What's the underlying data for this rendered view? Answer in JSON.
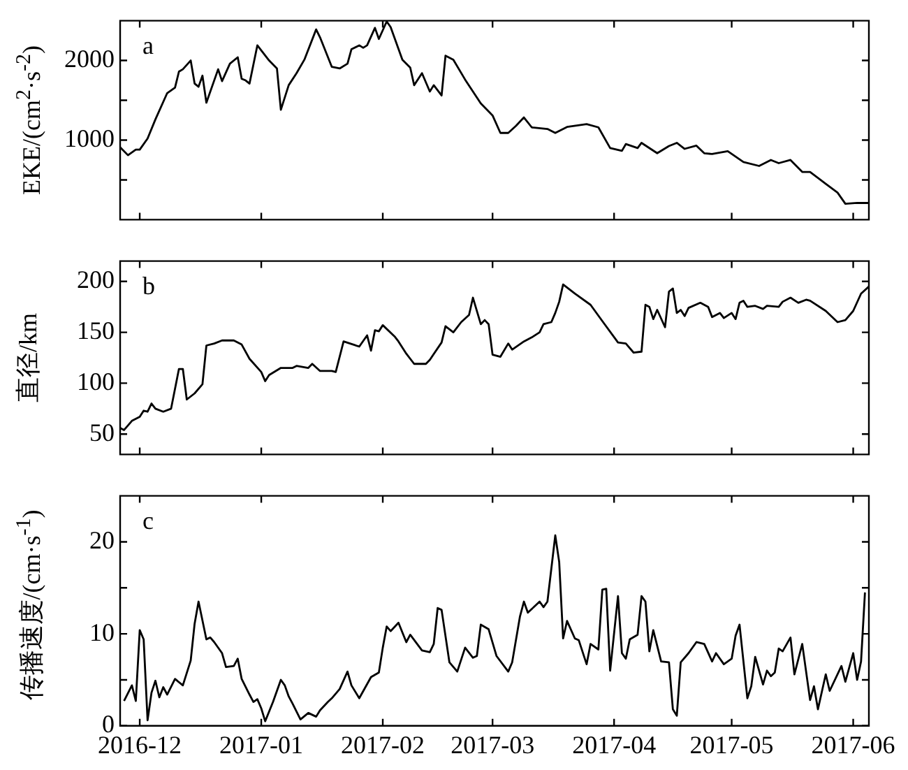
{
  "chart_data": [
    {
      "type": "line",
      "annotations": [
        "a"
      ],
      "ylabel": "EKE/(cm$^{2}$·s$^{-2}$)",
      "xlim": [
        "2016-11-26",
        "2017-06-05"
      ],
      "xticks": [
        "2016-12",
        "2017-01",
        "2017-02",
        "2017-03",
        "2017-04",
        "2017-05",
        "2017-06"
      ],
      "ylim": [
        0,
        2500
      ],
      "yticks": [
        {
          "value": 500,
          "label": null
        },
        1000,
        {
          "value": 1500,
          "label": null
        },
        2000
      ],
      "tick_labels": "y",
      "x": [
        "2016-11-26",
        "2016-11-28",
        "2016-11-30",
        "2016-12-01",
        "2016-12-03",
        "2016-12-05",
        "2016-12-08",
        "2016-12-10",
        "2016-12-11",
        "2016-12-12",
        "2016-12-14",
        "2016-12-15",
        "2016-12-16",
        "2016-12-17",
        "2016-12-18",
        "2016-12-21",
        "2016-12-22",
        "2016-12-24",
        "2016-12-26",
        "2016-12-27",
        "2016-12-28",
        "2016-12-29",
        "2016-12-31",
        "2017-01-03",
        "2017-01-05",
        "2017-01-06",
        "2017-01-08",
        "2017-01-10",
        "2017-01-12",
        "2017-01-15",
        "2017-01-16",
        "2017-01-19",
        "2017-01-21",
        "2017-01-23",
        "2017-01-24",
        "2017-01-26",
        "2017-01-27",
        "2017-01-28",
        "2017-01-30",
        "2017-01-31",
        "2017-02-02",
        "2017-02-03",
        "2017-02-06",
        "2017-02-08",
        "2017-02-09",
        "2017-02-11",
        "2017-02-13",
        "2017-02-14",
        "2017-02-16",
        "2017-02-17",
        "2017-02-19",
        "2017-02-22",
        "2017-02-26",
        "2017-03-01",
        "2017-03-03",
        "2017-03-05",
        "2017-03-07",
        "2017-03-09",
        "2017-03-11",
        "2017-03-15",
        "2017-03-17",
        "2017-03-20",
        "2017-03-25",
        "2017-03-28",
        "2017-03-31",
        "2017-04-03",
        "2017-04-04",
        "2017-04-07",
        "2017-04-08",
        "2017-04-12",
        "2017-04-15",
        "2017-04-17",
        "2017-04-19",
        "2017-04-22",
        "2017-04-24",
        "2017-04-26",
        "2017-04-30",
        "2017-05-04",
        "2017-05-08",
        "2017-05-11",
        "2017-05-13",
        "2017-05-16",
        "2017-05-19",
        "2017-05-21",
        "2017-05-25",
        "2017-05-28",
        "2017-05-30",
        "2017-06-02",
        "2017-06-05"
      ],
      "series": [
        {
          "color": "#000000",
          "values": [
            910,
            810,
            880,
            880,
            1020,
            1260,
            1590,
            1660,
            1860,
            1890,
            2000,
            1710,
            1670,
            1810,
            1470,
            1890,
            1740,
            1960,
            2040,
            1770,
            1750,
            1710,
            2190,
            2000,
            1900,
            1380,
            1690,
            1840,
            2010,
            2390,
            2290,
            1920,
            1900,
            1960,
            2140,
            2190,
            2160,
            2190,
            2410,
            2270,
            2490,
            2420,
            2010,
            1910,
            1690,
            1840,
            1610,
            1690,
            1560,
            2060,
            2010,
            1760,
            1460,
            1310,
            1090,
            1090,
            1180,
            1285,
            1160,
            1140,
            1090,
            1165,
            1200,
            1160,
            900,
            865,
            950,
            900,
            965,
            835,
            925,
            965,
            890,
            930,
            835,
            825,
            860,
            725,
            675,
            750,
            710,
            750,
            600,
            600,
            450,
            340,
            200,
            210,
            210
          ]
        }
      ]
    },
    {
      "type": "line",
      "annotations": [
        "b"
      ],
      "ylabel": "直径/km",
      "xlim": [
        "2016-11-26",
        "2017-06-05"
      ],
      "xticks": [
        "2016-12",
        "2017-01",
        "2017-02",
        "2017-03",
        "2017-04",
        "2017-05",
        "2017-06"
      ],
      "ylim": [
        30,
        220
      ],
      "yticks": [
        50,
        100,
        150,
        200
      ],
      "tick_labels": "y",
      "x": [
        "2016-11-26",
        "2016-11-27",
        "2016-11-29",
        "2016-12-01",
        "2016-12-02",
        "2016-12-03",
        "2016-12-04",
        "2016-12-05",
        "2016-12-07",
        "2016-12-09",
        "2016-12-11",
        "2016-12-12",
        "2016-12-13",
        "2016-12-15",
        "2016-12-17",
        "2016-12-18",
        "2016-12-20",
        "2016-12-22",
        "2016-12-25",
        "2016-12-27",
        "2016-12-29",
        "2017-01-01",
        "2017-01-02",
        "2017-01-03",
        "2017-01-06",
        "2017-01-09",
        "2017-01-10",
        "2017-01-13",
        "2017-01-14",
        "2017-01-16",
        "2017-01-19",
        "2017-01-20",
        "2017-01-22",
        "2017-01-26",
        "2017-01-28",
        "2017-01-29",
        "2017-01-30",
        "2017-01-31",
        "2017-02-01",
        "2017-02-04",
        "2017-02-05",
        "2017-02-07",
        "2017-02-09",
        "2017-02-12",
        "2017-02-13",
        "2017-02-16",
        "2017-02-17",
        "2017-02-19",
        "2017-02-21",
        "2017-02-23",
        "2017-02-24",
        "2017-02-26",
        "2017-02-27",
        "2017-02-28",
        "2017-03-01",
        "2017-03-03",
        "2017-03-05",
        "2017-03-06",
        "2017-03-09",
        "2017-03-11",
        "2017-03-13",
        "2017-03-14",
        "2017-03-16",
        "2017-03-17",
        "2017-03-18",
        "2017-03-19",
        "2017-03-22",
        "2017-03-26",
        "2017-03-29",
        "2017-04-02",
        "2017-04-04",
        "2017-04-06",
        "2017-04-08",
        "2017-04-09",
        "2017-04-10",
        "2017-04-11",
        "2017-04-12",
        "2017-04-14",
        "2017-04-15",
        "2017-04-16",
        "2017-04-17",
        "2017-04-18",
        "2017-04-19",
        "2017-04-20",
        "2017-04-23",
        "2017-04-25",
        "2017-04-26",
        "2017-04-28",
        "2017-04-29",
        "2017-05-01",
        "2017-05-02",
        "2017-05-03",
        "2017-05-04",
        "2017-05-05",
        "2017-05-07",
        "2017-05-09",
        "2017-05-10",
        "2017-05-13",
        "2017-05-14",
        "2017-05-16",
        "2017-05-18",
        "2017-05-20",
        "2017-05-21",
        "2017-05-25",
        "2017-05-28",
        "2017-05-30",
        "2017-06-01",
        "2017-06-03",
        "2017-06-05"
      ],
      "series": [
        {
          "color": "#000000",
          "values": [
            56,
            54,
            63,
            67,
            73,
            72,
            80,
            75,
            72,
            75,
            114,
            114,
            84,
            90,
            99,
            137,
            139,
            142,
            142,
            138,
            124,
            111,
            102,
            108,
            115,
            115,
            117,
            115,
            119,
            112,
            112,
            111,
            141,
            136,
            147,
            132,
            152,
            151,
            157,
            146,
            141,
            129,
            119,
            119,
            123,
            140,
            156,
            150,
            160,
            167,
            184,
            158,
            162,
            158,
            128,
            126,
            139,
            133,
            141,
            145,
            150,
            158,
            160,
            169,
            180,
            197,
            188,
            177,
            161,
            140,
            139,
            130,
            131,
            177,
            175,
            163,
            172,
            155,
            190,
            193,
            169,
            172,
            166,
            174,
            179,
            175,
            165,
            169,
            164,
            169,
            163,
            179,
            181,
            175,
            176,
            173,
            176,
            175,
            180,
            184,
            179,
            182,
            181,
            171,
            160,
            162,
            171,
            188,
            195
          ]
        }
      ]
    },
    {
      "type": "line",
      "annotations": [
        "c"
      ],
      "ylabel": "传播速度/(cm·s$^{-1}$)",
      "xlim": [
        "2016-11-26",
        "2017-06-05"
      ],
      "xticks": [
        "2016-12",
        "2017-01",
        "2017-02",
        "2017-03",
        "2017-04",
        "2017-05",
        "2017-06"
      ],
      "ylim": [
        0,
        25
      ],
      "yticks": [
        0,
        {
          "value": 5,
          "label": null
        },
        10,
        {
          "value": 15,
          "label": null
        },
        20
      ],
      "x": [
        "2016-11-27",
        "2016-11-29",
        "2016-11-30",
        "2016-12-01",
        "2016-12-02",
        "2016-12-03",
        "2016-12-04",
        "2016-12-05",
        "2016-12-06",
        "2016-12-07",
        "2016-12-08",
        "2016-12-10",
        "2016-12-12",
        "2016-12-14",
        "2016-12-15",
        "2016-12-16",
        "2016-12-18",
        "2016-12-19",
        "2016-12-20",
        "2016-12-22",
        "2016-12-23",
        "2016-12-25",
        "2016-12-26",
        "2016-12-27",
        "2016-12-29",
        "2016-12-30",
        "2016-12-31",
        "2017-01-01",
        "2017-01-02",
        "2017-01-04",
        "2017-01-06",
        "2017-01-07",
        "2017-01-08",
        "2017-01-09",
        "2017-01-11",
        "2017-01-13",
        "2017-01-15",
        "2017-01-16",
        "2017-01-18",
        "2017-01-19",
        "2017-01-21",
        "2017-01-23",
        "2017-01-24",
        "2017-01-26",
        "2017-01-29",
        "2017-01-31",
        "2017-02-01",
        "2017-02-02",
        "2017-02-03",
        "2017-02-05",
        "2017-02-07",
        "2017-02-08",
        "2017-02-11",
        "2017-02-13",
        "2017-02-14",
        "2017-02-15",
        "2017-02-16",
        "2017-02-18",
        "2017-02-20",
        "2017-02-22",
        "2017-02-24",
        "2017-02-25",
        "2017-02-26",
        "2017-02-28",
        "2017-03-02",
        "2017-03-05",
        "2017-03-06",
        "2017-03-08",
        "2017-03-09",
        "2017-03-10",
        "2017-03-13",
        "2017-03-14",
        "2017-03-15",
        "2017-03-17",
        "2017-03-18",
        "2017-03-19",
        "2017-03-20",
        "2017-03-22",
        "2017-03-23",
        "2017-03-25",
        "2017-03-26",
        "2017-03-28",
        "2017-03-29",
        "2017-03-30",
        "2017-03-31",
        "2017-04-02",
        "2017-04-03",
        "2017-04-04",
        "2017-04-05",
        "2017-04-07",
        "2017-04-08",
        "2017-04-09",
        "2017-04-10",
        "2017-04-11",
        "2017-04-13",
        "2017-04-15",
        "2017-04-16",
        "2017-04-17",
        "2017-04-18",
        "2017-04-20",
        "2017-04-22",
        "2017-04-24",
        "2017-04-26",
        "2017-04-27",
        "2017-04-29",
        "2017-05-01",
        "2017-05-02",
        "2017-05-03",
        "2017-05-05",
        "2017-05-06",
        "2017-05-07",
        "2017-05-09",
        "2017-05-10",
        "2017-05-11",
        "2017-05-12",
        "2017-05-13",
        "2017-05-14",
        "2017-05-16",
        "2017-05-17",
        "2017-05-19",
        "2017-05-21",
        "2017-05-22",
        "2017-05-23",
        "2017-05-25",
        "2017-05-26",
        "2017-05-29",
        "2017-05-30",
        "2017-06-01",
        "2017-06-02",
        "2017-06-03",
        "2017-06-04"
      ],
      "series": [
        {
          "color": "#000000",
          "values": [
            2.7,
            4.4,
            2.7,
            10.4,
            9.4,
            0.6,
            3.6,
            4.9,
            3.1,
            4.2,
            3.4,
            5.1,
            4.4,
            7.1,
            11.1,
            13.5,
            9.4,
            9.6,
            9.1,
            7.9,
            6.4,
            6.5,
            7.3,
            5.1,
            3.4,
            2.6,
            2.9,
            1.9,
            0.5,
            2.6,
            5.0,
            4.4,
            3.2,
            2.4,
            0.7,
            1.4,
            1.0,
            1.7,
            2.6,
            3.0,
            4.0,
            5.9,
            4.4,
            3.0,
            5.3,
            5.8,
            8.5,
            10.8,
            10.3,
            11.2,
            9.1,
            9.9,
            8.2,
            8.0,
            8.9,
            12.8,
            12.6,
            6.9,
            5.9,
            8.5,
            7.4,
            7.6,
            11.0,
            10.5,
            7.6,
            5.9,
            6.9,
            11.9,
            13.5,
            12.3,
            13.5,
            12.9,
            13.5,
            20.7,
            17.8,
            9.5,
            11.4,
            9.5,
            9.3,
            6.7,
            8.9,
            8.3,
            14.8,
            14.9,
            6.0,
            14.1,
            7.9,
            7.3,
            9.4,
            9.9,
            14.1,
            13.5,
            8.1,
            10.4,
            7.0,
            6.9,
            1.8,
            1.1,
            6.9,
            7.9,
            9.1,
            8.9,
            7.0,
            7.9,
            6.7,
            7.3,
            9.8,
            11.0,
            3.0,
            4.3,
            7.5,
            4.5,
            6.0,
            5.4,
            5.8,
            8.4,
            8.1,
            9.6,
            5.6,
            8.9,
            2.8,
            4.3,
            1.8,
            5.6,
            3.8,
            6.5,
            4.8,
            7.9,
            5.0,
            7.0,
            14.5
          ]
        }
      ]
    }
  ]
}
